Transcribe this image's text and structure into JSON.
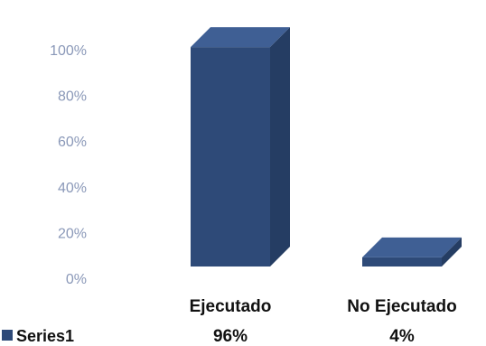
{
  "chart_data": {
    "type": "bar",
    "categories": [
      "Ejecutado",
      "No Ejecutado"
    ],
    "series": [
      {
        "name": "Series1",
        "values": [
          96,
          4
        ],
        "value_labels": [
          "96%",
          "4%"
        ]
      }
    ],
    "y_ticks": [
      "0%",
      "20%",
      "40%",
      "60%",
      "80%",
      "100%"
    ],
    "ylim": [
      0,
      100
    ],
    "grid": false,
    "legend_position": "bottom-left",
    "bar_color": "#2e4a78",
    "bar_top_color": "#3f5f94",
    "bar_side_color": "#253d63"
  }
}
